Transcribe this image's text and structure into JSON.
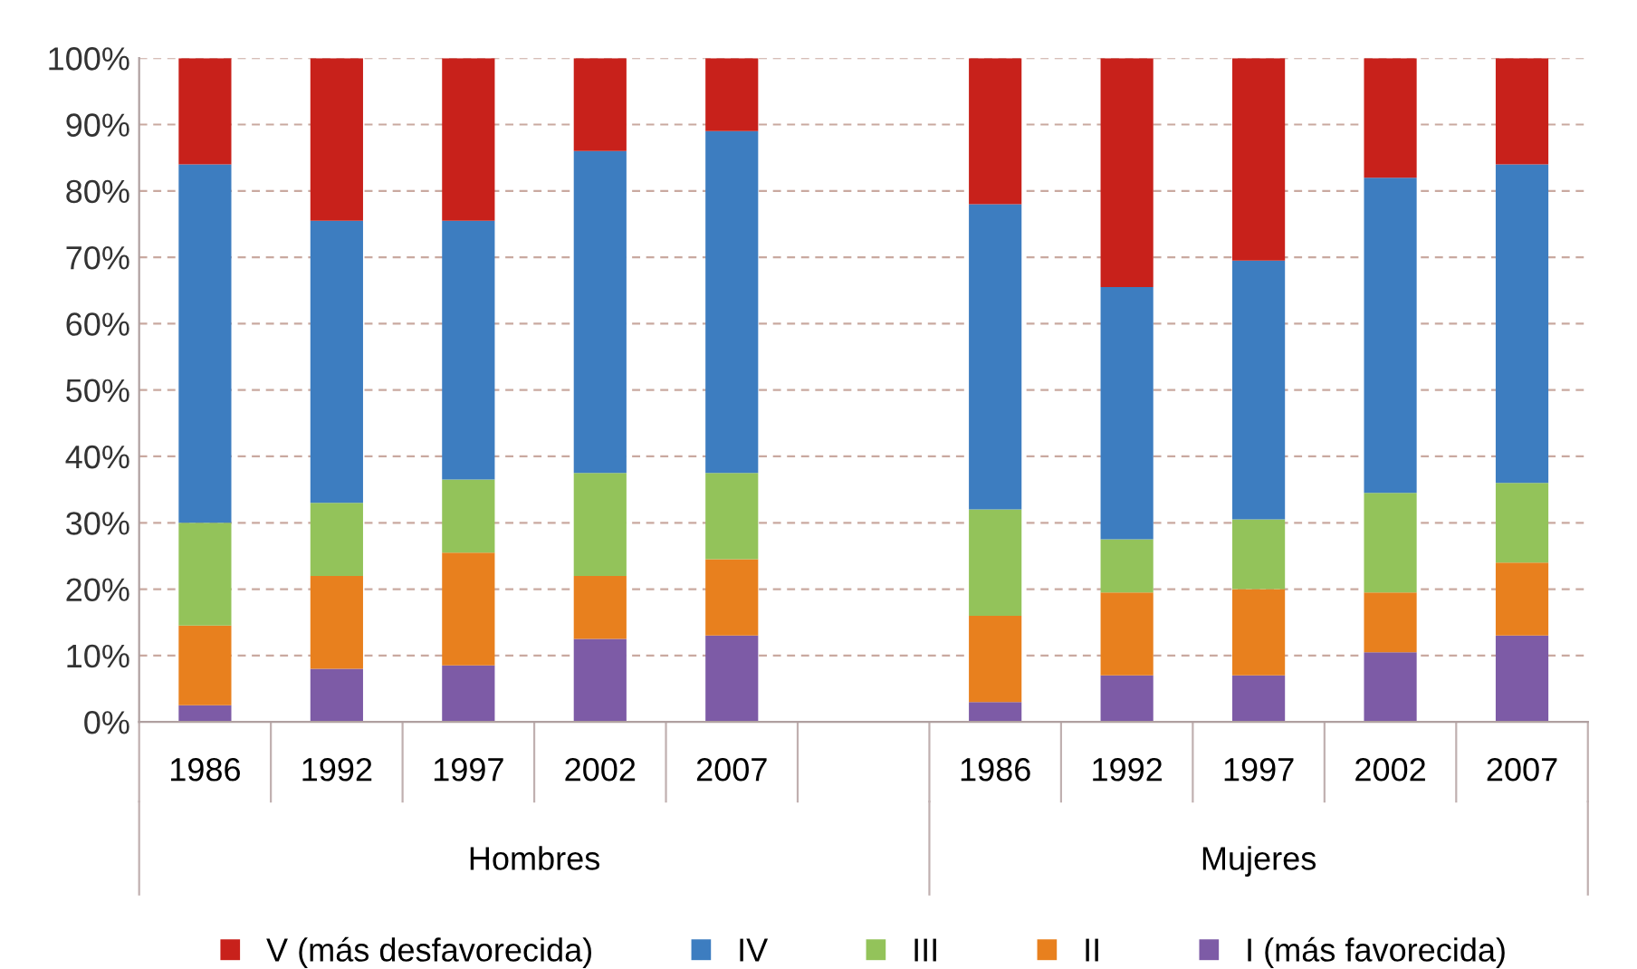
{
  "chart_data": {
    "type": "bar",
    "stacked": true,
    "categories": [
      "1986",
      "1992",
      "1997",
      "2002",
      "2007",
      null,
      "1986",
      "1992",
      "1997",
      "2002",
      "2007"
    ],
    "series": [
      {
        "name": "I (más favorecida)",
        "color": "#7d5ba6",
        "values": [
          2.5,
          8,
          8.5,
          12.5,
          13,
          null,
          3,
          7,
          7,
          10.5,
          13
        ]
      },
      {
        "name": "II",
        "color": "#e8801e",
        "values": [
          12,
          14,
          17,
          9.5,
          11.5,
          null,
          13,
          12.5,
          13,
          9,
          11
        ]
      },
      {
        "name": "III",
        "color": "#93c35a",
        "values": [
          15.5,
          11,
          11,
          15.5,
          13,
          null,
          16,
          8,
          10.5,
          15,
          12
        ]
      },
      {
        "name": "IV",
        "color": "#3d7dc0",
        "values": [
          54,
          42.5,
          39,
          48.5,
          51.5,
          null,
          46,
          38,
          39,
          47.5,
          48
        ]
      },
      {
        "name": "V (más desfavorecida)",
        "color": "#c8211b",
        "values": [
          16,
          24.5,
          24.5,
          14,
          11,
          null,
          22,
          34.5,
          30.5,
          18,
          16
        ]
      }
    ],
    "ylim": [
      0,
      100
    ],
    "yticks": [
      {
        "value": 0,
        "label": "0%"
      },
      {
        "value": 10,
        "label": "10%"
      },
      {
        "value": 20,
        "label": "20%"
      },
      {
        "value": 30,
        "label": "30%"
      },
      {
        "value": 40,
        "label": "40%"
      },
      {
        "value": 50,
        "label": "50%"
      },
      {
        "value": 60,
        "label": "60%"
      },
      {
        "value": 70,
        "label": "70%"
      },
      {
        "value": 80,
        "label": "80%"
      },
      {
        "value": 90,
        "label": "90%"
      },
      {
        "value": 100,
        "label": "100%"
      }
    ],
    "annotations": [
      "Hombres",
      "Mujeres"
    ],
    "grid": "y",
    "legend": "bottom"
  }
}
